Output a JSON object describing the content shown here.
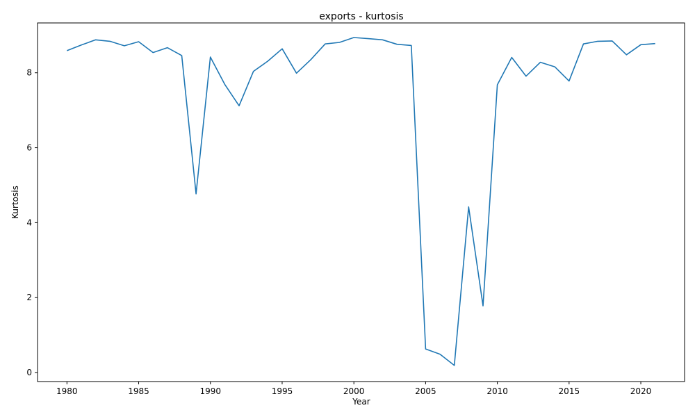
{
  "chart_data": {
    "type": "line",
    "title": "exports - kurtosis",
    "xlabel": "Year",
    "ylabel": "Kurtosis",
    "xlim": [
      1977.95,
      2023.05
    ],
    "ylim": [
      -0.24,
      9.33
    ],
    "grid": false,
    "legend": "none",
    "x_ticks": [
      1980,
      1985,
      1990,
      1995,
      2000,
      2005,
      2010,
      2015,
      2020
    ],
    "y_ticks": [
      0,
      2,
      4,
      6,
      8
    ],
    "series": [
      {
        "color": "#1f77b4",
        "x": [
          1980,
          1981,
          1982,
          1983,
          1984,
          1985,
          1986,
          1987,
          1988,
          1989,
          1990,
          1991,
          1992,
          1993,
          1994,
          1995,
          1996,
          1997,
          1998,
          1999,
          2000,
          2001,
          2002,
          2003,
          2004,
          2005,
          2006,
          2007,
          2008,
          2009,
          2010,
          2011,
          2012,
          2013,
          2014,
          2015,
          2016,
          2017,
          2018,
          2019,
          2020,
          2021
        ],
        "values": [
          8.59,
          8.74,
          8.88,
          8.84,
          8.72,
          8.83,
          8.54,
          8.67,
          8.46,
          4.77,
          8.42,
          7.69,
          7.12,
          8.04,
          8.31,
          8.64,
          7.99,
          8.35,
          8.77,
          8.81,
          8.94,
          8.91,
          8.88,
          8.76,
          8.73,
          0.63,
          0.49,
          0.19,
          4.42,
          1.78,
          7.68,
          8.41,
          7.91,
          8.28,
          8.16,
          7.78,
          8.77,
          8.84,
          8.85,
          8.48,
          8.75,
          8.78
        ]
      }
    ]
  }
}
